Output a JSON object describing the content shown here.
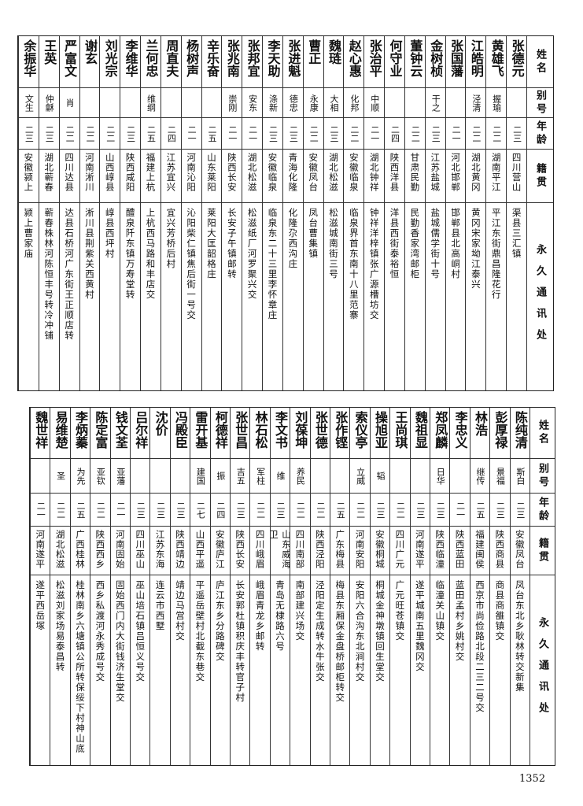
{
  "headers": {
    "name": "姓名",
    "alias": "别号",
    "age": "年龄",
    "native": "籍贯",
    "address": "永久通讯处"
  },
  "top_table": [
    {
      "name": "张德元",
      "alias": "",
      "age": "二三",
      "native": "四川营山",
      "address": "渠县三汇镇"
    },
    {
      "name": "黄雄飞",
      "alias": "握瑜",
      "age": "二二",
      "native": "湖南平江",
      "address": "平江东街鼎昌隆花行"
    },
    {
      "name": "江皓明",
      "alias": "泾清",
      "age": "二二",
      "native": "湖北黄冈",
      "address": "黄冈宋家坳江泰兴"
    },
    {
      "name": "张国藩",
      "alias": "",
      "age": "二一",
      "native": "河北邯郸",
      "address": "邯郸县北高峒村"
    },
    {
      "name": "金树桢",
      "alias": "干之",
      "age": "二三",
      "native": "江苏盐城",
      "address": "盐城儒学街十号"
    },
    {
      "name": "董钟云",
      "alias": "",
      "age": "二二",
      "native": "甘肃民勤",
      "address": "民勤香家湾邮柜"
    },
    {
      "name": "何守业",
      "alias": "",
      "age": "二四",
      "native": "陕西洋县",
      "address": "洋县西街泰裕恒"
    },
    {
      "name": "张治平",
      "alias": "中顺",
      "age": "二一",
      "native": "湖北钟祥",
      "address": "钟祥洋梓镇张广源槽坊交"
    },
    {
      "name": "赵心惠",
      "alias": "化邦",
      "age": "二二",
      "native": "安徽临泉",
      "address": "临泉界首东南十八里范寨"
    },
    {
      "name": "魏琏",
      "alias": "大相",
      "age": "二三",
      "native": "湖北松滋",
      "address": "松滋城南街三号"
    },
    {
      "name": "曹正",
      "alias": "永康",
      "age": "二二",
      "native": "安徽凤台",
      "address": "凤台曹集镇"
    },
    {
      "name": "张进魁",
      "alias": "德忠",
      "age": "二三",
      "native": "青海化隆",
      "address": "化隆尕西沟庄"
    },
    {
      "name": "李天助",
      "alias": "涤新",
      "age": "二三",
      "native": "安徽临泉",
      "address": "临泉东二十三里李怀章庄"
    },
    {
      "name": "张邦宜",
      "alias": "安东",
      "age": "二一",
      "native": "湖北松滋",
      "address": "松滋纸厂河罗聚兴交"
    },
    {
      "name": "张兆南",
      "alias": "崇刚",
      "age": "二一",
      "native": "陕西长安",
      "address": "长安子午镇邮转"
    },
    {
      "name": "辛乐奋",
      "alias": "",
      "age": "二五",
      "native": "山东莱阳",
      "address": "莱阳大匡韶格庄"
    },
    {
      "name": "杨树声",
      "alias": "",
      "age": "二一",
      "native": "河南沁阳",
      "address": "沁阳柴仁镇焦后街一号交"
    },
    {
      "name": "周直夫",
      "alias": "",
      "age": "二四",
      "native": "江苏宜兴",
      "address": "宜兴芳桥后村"
    },
    {
      "name": "兰何忠",
      "alias": "维纲",
      "age": "二五",
      "native": "福建上杭",
      "address": "上杭西马路和丰店交"
    },
    {
      "name": "李维华",
      "alias": "",
      "age": "二三",
      "native": "陕西咸阳",
      "address": "醴泉阡东镇万寿堂转"
    },
    {
      "name": "刘光宗",
      "alias": "",
      "age": "二二",
      "native": "山西崞县",
      "address": "崞县西坪村"
    },
    {
      "name": "谢玄",
      "alias": "",
      "age": "二二",
      "native": "河南淅川",
      "address": "淅川县荆紫关西黄村"
    },
    {
      "name": "严富文",
      "alias": "肖",
      "age": "二二",
      "native": "四川达县",
      "address": "达县石桥河广东街王正顺店转"
    },
    {
      "name": "王英",
      "alias": "仲龢",
      "age": "二三",
      "native": "湖北蕲春",
      "address": "蕲春株林河陈恒丰号转冷冲铺"
    },
    {
      "name": "余振华",
      "alias": "文生",
      "age": "二三",
      "native": "安徽颍上",
      "address": "颍上曹家庙"
    }
  ],
  "bottom_table": [
    {
      "name": "陈纯清",
      "alias": "斯白",
      "age": "二三",
      "native": "安徽凤台",
      "address": "凤台东北乡耿林转交新集"
    },
    {
      "name": "彭厚禄",
      "alias": "景福",
      "age": "二三",
      "native": "陕西商县",
      "address": "商县商雒镇交"
    },
    {
      "name": "林浩",
      "alias": "继传",
      "age": "二五",
      "native": "福建闽侯",
      "address": "西京市尚俭路北段二三二号交"
    },
    {
      "name": "李忠义",
      "alias": "",
      "age": "二一",
      "native": "陕西蓝田",
      "address": "蓝田孟村乡姚村交"
    },
    {
      "name": "郑凤麟",
      "alias": "日华",
      "age": "二三",
      "native": "陕西临潼",
      "address": "临潼关山镇交"
    },
    {
      "name": "魏祖显",
      "alias": "",
      "age": "二三",
      "native": "河南遂平",
      "address": "遂平城南五里魏冈交"
    },
    {
      "name": "王尚琪",
      "alias": "",
      "age": "二二",
      "native": "四川广元",
      "address": "广元旺苍镇交"
    },
    {
      "name": "操旭亚",
      "alias": "韬",
      "age": "二三",
      "native": "安徽桐城",
      "address": "桐城金神墩镇回生堂交"
    },
    {
      "name": "索仪亭",
      "alias": "立威",
      "age": "二二",
      "native": "河南安阳",
      "address": "安阳六合沟东北涧村交"
    },
    {
      "name": "张作铿",
      "alias": "",
      "age": "二五",
      "native": "广东梅县",
      "address": "梅县东厢保金盘桥邮柜转交"
    },
    {
      "name": "张世德",
      "alias": "",
      "age": "二二",
      "native": "陕西泾阳",
      "address": "泾阳定生成转水牛张交"
    },
    {
      "name": "刘葆坤",
      "alias": "养民",
      "age": "二二",
      "native": "四川南部",
      "address": "南部建兴场交"
    },
    {
      "name": "李文书",
      "alias": "维",
      "age": "二三",
      "native": "山东威海卫",
      "address": "青岛无棣路六号"
    },
    {
      "name": "林石松",
      "alias": "军柱",
      "age": "二二",
      "native": "四川峨眉",
      "address": "峨眉青龙乡邮转"
    },
    {
      "name": "张世昌",
      "alias": "吉五",
      "age": "二三",
      "native": "陕西长安",
      "address": "长安郭杜镇积庆丰转官子村"
    },
    {
      "name": "柯德祥",
      "alias": "振",
      "age": "二四",
      "native": "安徽庐江",
      "address": "庐江东乡分路碑交"
    },
    {
      "name": "雷开基",
      "alias": "建国",
      "age": "二七",
      "native": "山西平遥",
      "address": "平遥岳壁村北截东巷交"
    },
    {
      "name": "冯殿臣",
      "alias": "",
      "age": "二三",
      "native": "陕西靖边",
      "address": "靖边马営村交"
    },
    {
      "name": "沈价",
      "alias": "",
      "age": "二三",
      "native": "江苏东海",
      "address": "连云市西墅"
    },
    {
      "name": "吕尔祥",
      "alias": "",
      "age": "二三",
      "native": "四川巫山",
      "address": "巫山培石镇吕恒义号交"
    },
    {
      "name": "钱文荃",
      "alias": "亚藩",
      "age": "二一",
      "native": "河南固始",
      "address": "固始西门内大街钱济生堂交"
    },
    {
      "name": "陈定富",
      "alias": "亚钦",
      "age": "二二",
      "native": "陕西西乡",
      "address": "西乡私渡河永秀成号交"
    },
    {
      "name": "李炳蓁",
      "alias": "为先",
      "age": "二五",
      "native": "广西桂林",
      "address": "桂林南乡六塘镇公所转保绥下村神山底"
    },
    {
      "name": "易维楚",
      "alias": "圣",
      "age": "二二",
      "native": "湖北松滋",
      "address": "松滋刘家场易泰昌转"
    },
    {
      "name": "魏世祥",
      "alias": "",
      "age": "二一",
      "native": "河南遂平",
      "address": "遂平西岳塚"
    }
  ],
  "page_number": "1352"
}
